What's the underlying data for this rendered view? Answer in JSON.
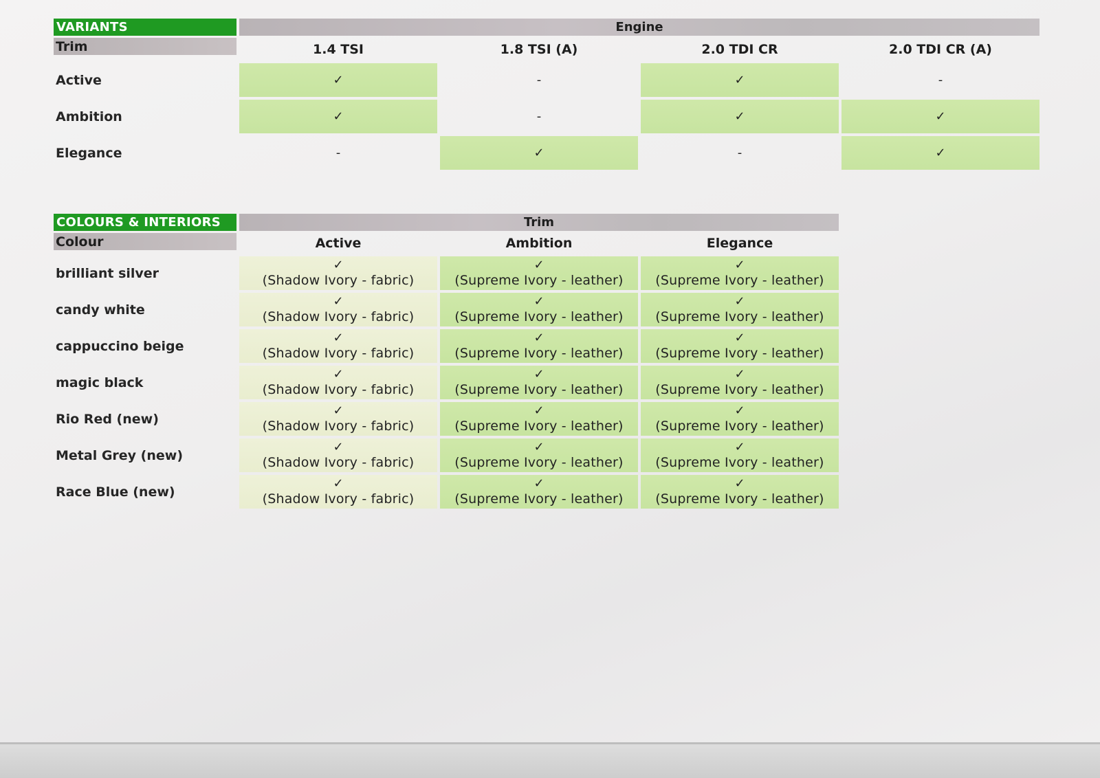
{
  "variants": {
    "section_label": "VARIANTS",
    "group_header": "Engine",
    "row_header": "Trim",
    "columns": [
      "1.4 TSI",
      "1.8 TSI (A)",
      "2.0 TDI CR",
      "2.0 TDI CR (A)"
    ],
    "rows": [
      {
        "label": "Active",
        "cells": [
          {
            "mark": "✓",
            "available": true
          },
          {
            "mark": "-",
            "available": false
          },
          {
            "mark": "✓",
            "available": true
          },
          {
            "mark": "-",
            "available": false
          }
        ]
      },
      {
        "label": "Ambition",
        "cells": [
          {
            "mark": "✓",
            "available": true
          },
          {
            "mark": "-",
            "available": false
          },
          {
            "mark": "✓",
            "available": true
          },
          {
            "mark": "✓",
            "available": true
          }
        ]
      },
      {
        "label": "Elegance",
        "cells": [
          {
            "mark": "-",
            "available": false
          },
          {
            "mark": "✓",
            "available": true
          },
          {
            "mark": "-",
            "available": false
          },
          {
            "mark": "✓",
            "available": true
          }
        ]
      }
    ]
  },
  "colours": {
    "section_label": "COLOURS & INTERIORS",
    "group_header": "Trim",
    "row_header": "Colour",
    "columns": [
      "Active",
      "Ambition",
      "Elegance"
    ],
    "rows": [
      {
        "label": "brilliant silver",
        "cells": [
          {
            "mark": "✓",
            "note": "(Shadow Ivory - fabric)"
          },
          {
            "mark": "✓",
            "note": "(Supreme Ivory - leather)"
          },
          {
            "mark": "✓",
            "note": "(Supreme Ivory - leather)"
          }
        ]
      },
      {
        "label": "candy white",
        "cells": [
          {
            "mark": "✓",
            "note": "(Shadow Ivory - fabric)"
          },
          {
            "mark": "✓",
            "note": "(Supreme Ivory - leather)"
          },
          {
            "mark": "✓",
            "note": "(Supreme Ivory - leather)"
          }
        ]
      },
      {
        "label": "cappuccino beige",
        "cells": [
          {
            "mark": "✓",
            "note": "(Shadow Ivory - fabric)"
          },
          {
            "mark": "✓",
            "note": "(Supreme Ivory - leather)"
          },
          {
            "mark": "✓",
            "note": "(Supreme Ivory - leather)"
          }
        ]
      },
      {
        "label": "magic black",
        "cells": [
          {
            "mark": "✓",
            "note": "(Shadow Ivory - fabric)"
          },
          {
            "mark": "✓",
            "note": "(Supreme Ivory - leather)"
          },
          {
            "mark": "✓",
            "note": "(Supreme Ivory - leather)"
          }
        ]
      },
      {
        "label": "Rio Red (new)",
        "cells": [
          {
            "mark": "✓",
            "note": "(Shadow Ivory - fabric)"
          },
          {
            "mark": "✓",
            "note": "(Supreme Ivory - leather)"
          },
          {
            "mark": "✓",
            "note": "(Supreme Ivory - leather)"
          }
        ]
      },
      {
        "label": "Metal Grey (new)",
        "cells": [
          {
            "mark": "✓",
            "note": "(Shadow Ivory - fabric)"
          },
          {
            "mark": "✓",
            "note": "(Supreme Ivory - leather)"
          },
          {
            "mark": "✓",
            "note": "(Supreme Ivory - leather)"
          }
        ]
      },
      {
        "label": "Race Blue (new)",
        "cells": [
          {
            "mark": "✓",
            "note": "(Shadow Ivory - fabric)"
          },
          {
            "mark": "✓",
            "note": "(Supreme Ivory - leather)"
          },
          {
            "mark": "✓",
            "note": "(Supreme Ivory - leather)"
          }
        ]
      }
    ]
  },
  "colors": {
    "section_green": "#1f9a22",
    "available_cell": "#cbe6a4",
    "fabric_cell": "#ecf0d4",
    "header_band": "#c2bcbf"
  }
}
